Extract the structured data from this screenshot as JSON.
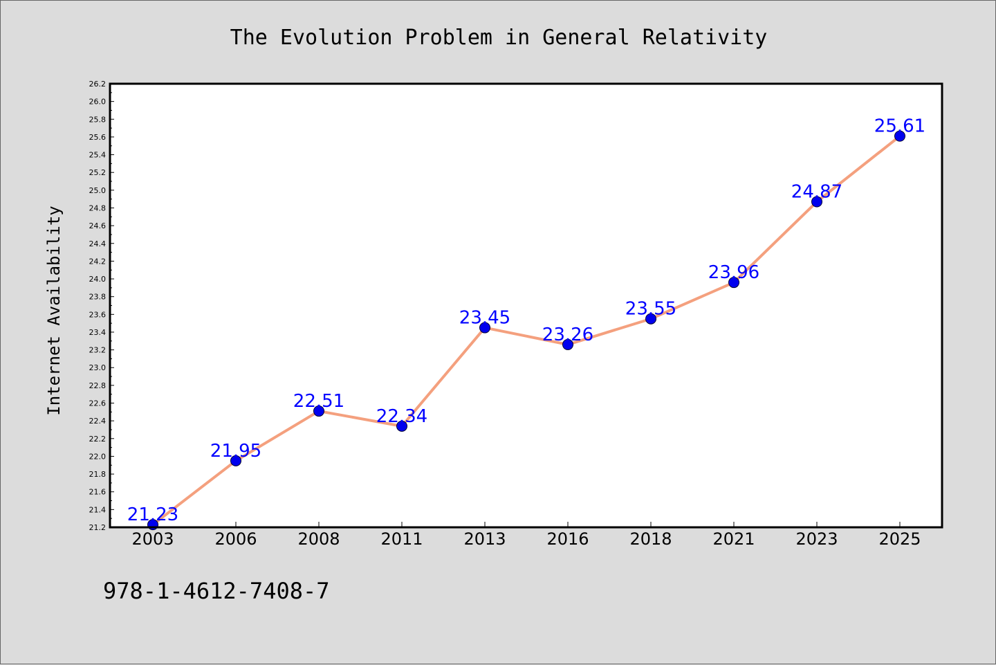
{
  "chart_data": {
    "type": "line",
    "title": "The Evolution Problem in General Relativity",
    "xlabel": "",
    "ylabel": "Internet Availability",
    "categories": [
      "2003",
      "2006",
      "2008",
      "2011",
      "2013",
      "2016",
      "2018",
      "2021",
      "2023",
      "2025"
    ],
    "series": [
      {
        "values": [
          21.23,
          21.95,
          22.51,
          22.34,
          23.45,
          23.26,
          23.55,
          23.96,
          24.87,
          25.61
        ],
        "line_color": "#f4a07e",
        "marker_color": "#0000ee"
      }
    ],
    "data_labels": [
      "21.23",
      "21.95",
      "22.51",
      "22.34",
      "23.45",
      "23.26",
      "23.55",
      "23.96",
      "24.87",
      "25.61"
    ],
    "ylim": [
      21.2,
      26.2
    ],
    "yticks": [
      "21.2",
      "21.4",
      "21.6",
      "21.8",
      "22.0",
      "22.2",
      "22.4",
      "22.6",
      "22.8",
      "23.0",
      "23.2",
      "23.4",
      "23.6",
      "23.8",
      "24.0",
      "24.2",
      "24.4",
      "24.6",
      "24.8",
      "25.0",
      "25.2",
      "25.4",
      "25.6",
      "25.8",
      "26.0",
      "26.2"
    ],
    "grid": false,
    "legend": "none"
  },
  "footer": {
    "isbn": "978-1-4612-7408-7"
  }
}
